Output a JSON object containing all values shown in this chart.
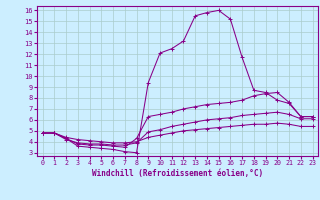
{
  "xlabel": "Windchill (Refroidissement éolien,°C)",
  "background_color": "#cceeff",
  "line_color": "#880088",
  "grid_color": "#aacccc",
  "xlim": [
    -0.5,
    23.5
  ],
  "ylim": [
    2.7,
    16.4
  ],
  "xticks": [
    0,
    1,
    2,
    3,
    4,
    5,
    6,
    7,
    8,
    9,
    10,
    11,
    12,
    13,
    14,
    15,
    16,
    17,
    18,
    19,
    20,
    21,
    22,
    23
  ],
  "yticks": [
    3,
    4,
    5,
    6,
    7,
    8,
    9,
    10,
    11,
    12,
    13,
    14,
    15,
    16
  ],
  "line1_x": [
    0,
    1,
    2,
    3,
    4,
    5,
    6,
    7,
    8,
    9,
    10,
    11,
    12,
    13,
    14,
    15,
    16,
    17,
    18,
    19,
    20,
    21,
    22,
    23
  ],
  "line1_y": [
    4.8,
    4.8,
    4.3,
    3.6,
    3.5,
    3.4,
    3.3,
    3.1,
    3.0,
    9.4,
    12.1,
    12.5,
    13.2,
    15.5,
    15.8,
    16.0,
    15.2,
    11.7,
    8.7,
    8.5,
    7.8,
    7.5,
    6.3,
    6.3
  ],
  "line2_x": [
    0,
    1,
    2,
    3,
    4,
    5,
    6,
    7,
    8,
    9,
    10,
    11,
    12,
    13,
    14,
    15,
    16,
    17,
    18,
    19,
    20,
    21,
    22,
    23
  ],
  "line2_y": [
    4.8,
    4.8,
    4.3,
    3.8,
    3.7,
    3.7,
    3.6,
    3.5,
    4.3,
    6.3,
    6.5,
    6.7,
    7.0,
    7.2,
    7.4,
    7.5,
    7.6,
    7.8,
    8.2,
    8.4,
    8.5,
    7.6,
    6.3,
    6.3
  ],
  "line3_x": [
    0,
    1,
    2,
    3,
    4,
    5,
    6,
    7,
    8,
    9,
    10,
    11,
    12,
    13,
    14,
    15,
    16,
    17,
    18,
    19,
    20,
    21,
    22,
    23
  ],
  "line3_y": [
    4.8,
    4.8,
    4.2,
    3.9,
    3.8,
    3.8,
    3.7,
    3.7,
    3.9,
    4.9,
    5.1,
    5.4,
    5.6,
    5.8,
    6.0,
    6.1,
    6.2,
    6.4,
    6.5,
    6.6,
    6.7,
    6.5,
    6.1,
    6.1
  ],
  "line4_x": [
    0,
    1,
    2,
    3,
    4,
    5,
    6,
    7,
    8,
    9,
    10,
    11,
    12,
    13,
    14,
    15,
    16,
    17,
    18,
    19,
    20,
    21,
    22,
    23
  ],
  "line4_y": [
    4.8,
    4.8,
    4.4,
    4.2,
    4.1,
    4.0,
    3.9,
    3.9,
    4.0,
    4.4,
    4.6,
    4.8,
    5.0,
    5.1,
    5.2,
    5.3,
    5.4,
    5.5,
    5.6,
    5.6,
    5.7,
    5.6,
    5.4,
    5.4
  ]
}
